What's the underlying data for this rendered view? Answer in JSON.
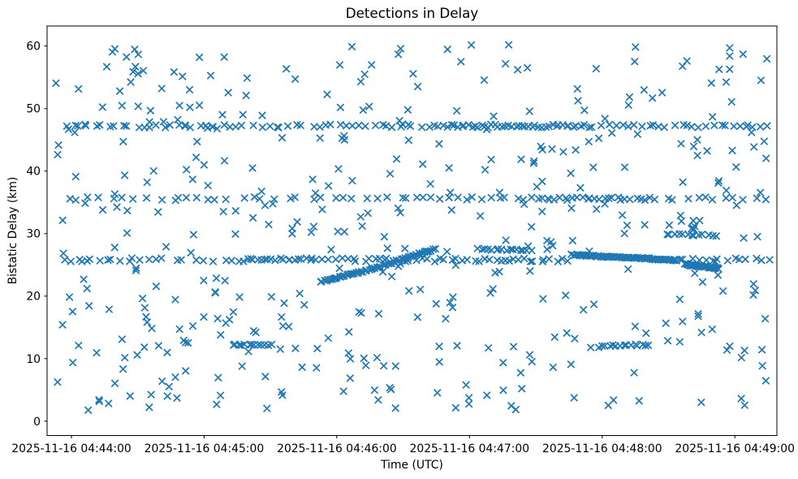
{
  "window": {
    "title": "Detections in Delay"
  },
  "chart_data": {
    "type": "scatter",
    "title": "Detections in Delay",
    "xlabel": "Time (UTC)",
    "ylabel": "Bistatic Delay (km)",
    "grid": false,
    "legend": "none",
    "marker": {
      "style": "x",
      "color": "#1f77b4",
      "size": 8.4,
      "stroke_width": 1.7
    },
    "frame_color": "#000000",
    "background_color": "#ffffff",
    "x_axis": {
      "description": "seconds since 2025-11-16 04:44:00 UTC",
      "min": -11,
      "max": 319,
      "ticks": [
        {
          "t": 0,
          "label": "2025-11-16 04:44:00"
        },
        {
          "t": 60,
          "label": "2025-11-16 04:45:00"
        },
        {
          "t": 120,
          "label": "2025-11-16 04:46:00"
        },
        {
          "t": 180,
          "label": "2025-11-16 04:47:00"
        },
        {
          "t": 240,
          "label": "2025-11-16 04:48:00"
        },
        {
          "t": 300,
          "label": "2025-11-16 04:49:00"
        }
      ]
    },
    "y_axis": {
      "min": -2.3,
      "max": 63.2,
      "ticks": [
        {
          "v": 0,
          "label": "0"
        },
        {
          "v": 10,
          "label": "10"
        },
        {
          "v": 20,
          "label": "20"
        },
        {
          "v": 30,
          "label": "30"
        },
        {
          "v": 40,
          "label": "40"
        },
        {
          "v": 50,
          "label": "50"
        },
        {
          "v": 60,
          "label": "60"
        }
      ]
    },
    "seed": 42,
    "series": [
      {
        "name": "band-47km",
        "type": "band",
        "y": 47.2,
        "y_jitter": 0.25,
        "segments": [
          [
            -4,
            60,
            20
          ],
          [
            60,
            120,
            18
          ],
          [
            120,
            168,
            16
          ],
          [
            168,
            232,
            42
          ],
          [
            232,
            316,
            28
          ]
        ]
      },
      {
        "name": "band-35.6km",
        "type": "band",
        "y": 35.6,
        "y_jitter": 0.25,
        "segments": [
          [
            -4,
            80,
            16
          ],
          [
            80,
            150,
            14
          ],
          [
            150,
            210,
            16
          ],
          [
            210,
            262,
            26
          ],
          [
            262,
            316,
            12
          ]
        ]
      },
      {
        "name": "band-25.8km",
        "type": "band",
        "y": 25.8,
        "y_jitter": 0.28,
        "segments": [
          [
            -6,
            40,
            14
          ],
          [
            40,
            75,
            8
          ],
          [
            75,
            112,
            22
          ],
          [
            112,
            165,
            20
          ],
          [
            165,
            226,
            24
          ],
          [
            273,
            316,
            14
          ]
        ]
      },
      {
        "name": "track-ascending-22-to-27.7km",
        "type": "track",
        "count": 62,
        "y_jitter": 0.13,
        "waypoints": [
          [
            112,
            22.3
          ],
          [
            128,
            23.6
          ],
          [
            144,
            25.2
          ],
          [
            156,
            26.6
          ],
          [
            165,
            27.6
          ]
        ]
      },
      {
        "name": "segment-27.4km",
        "type": "track",
        "count": 16,
        "y_jitter": 0.12,
        "waypoints": [
          [
            183,
            27.5
          ],
          [
            209,
            27.3
          ]
        ]
      },
      {
        "name": "track-descending-26.6-to-25.7km",
        "type": "track",
        "count": 72,
        "y_jitter": 0.1,
        "waypoints": [
          [
            226,
            26.6
          ],
          [
            248,
            26.2
          ],
          [
            266,
            25.9
          ],
          [
            274,
            25.7
          ]
        ]
      },
      {
        "name": "track-descending-tail-25-to-24.4km",
        "type": "track",
        "count": 34,
        "y_jitter": 0.12,
        "waypoints": [
          [
            277,
            25.1
          ],
          [
            293,
            24.4
          ]
        ]
      },
      {
        "name": "segment-12km-a",
        "type": "track",
        "count": 13,
        "y_jitter": 0.1,
        "waypoints": [
          [
            72,
            12.2
          ],
          [
            91,
            12.2
          ]
        ]
      },
      {
        "name": "segment-12km-b",
        "type": "track",
        "count": 14,
        "y_jitter": 0.12,
        "waypoints": [
          [
            239,
            12.1
          ],
          [
            262,
            12.2
          ]
        ]
      },
      {
        "name": "segment-30km",
        "type": "track",
        "count": 13,
        "y_jitter": 0.12,
        "waypoints": [
          [
            268,
            29.9
          ],
          [
            292,
            29.7
          ]
        ]
      },
      {
        "name": "clutter",
        "type": "clutter",
        "count": 430,
        "t_min": -8,
        "t_max": 316,
        "y_min": 0.8,
        "y_max": 60.2
      }
    ]
  }
}
